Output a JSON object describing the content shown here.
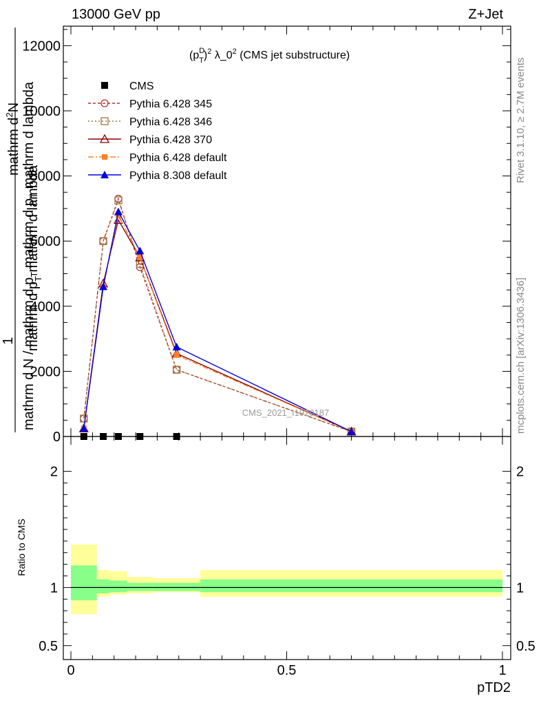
{
  "header": {
    "left": "13000 GeV pp",
    "right": "Z+Jet"
  },
  "side_labels": {
    "rivet": "Rivet 3.1.10, ≥ 2.7M events",
    "mcplots": "mcplots.cern.ch [arXiv:1306.3436]"
  },
  "main_title": "(p_T^D)^2 λ_0^2 (CMS jet substructure)",
  "watermark": "CMS_2021_I1920187",
  "ratio_ylabel": "Ratio to CMS",
  "xlabel": "pTD2",
  "main_ylabel": {
    "numerator": "mathrm d^2N",
    "num_parts": [
      "mathrm d",
      "2",
      "N"
    ],
    "frac1_num": "1",
    "denominator": "mathrm d p_T mathrm d lambda",
    "frac2_den_parts": [
      "mathrm d N / mathrm d p",
      "T",
      "mathrm d p",
      "T",
      "mathrm d lambda"
    ],
    "left_parts": [
      "mathrm d N / mathrm d p",
      "T"
    ]
  },
  "colors": {
    "cms": "#000000",
    "p345": "#b03030",
    "p346": "#9a7a3a",
    "p370": "#8b0000",
    "p6def": "#ff7f27",
    "p8def": "#0000dd",
    "band_yellow": "#ffff99",
    "band_green": "#88ff88"
  },
  "chart_data": [
    {
      "type": "line",
      "panel": "main",
      "xlim": [
        0,
        1
      ],
      "ylim": [
        0,
        12600
      ],
      "yticks": [
        0,
        2000,
        4000,
        6000,
        8000,
        10000,
        12000
      ],
      "ytick_labels": [
        "0",
        "2000",
        "4000",
        "6000",
        "8000",
        "10000",
        "12000"
      ],
      "series": [
        {
          "name": "CMS",
          "marker": "square",
          "x": [
            0.03,
            0.075,
            0.11,
            0.16,
            0.245
          ],
          "y": [
            0,
            0,
            0,
            0,
            0
          ]
        },
        {
          "name": "Pythia 6.428 345",
          "marker": "circle-open",
          "dash": "4,3",
          "x": [
            0.03,
            0.075,
            0.11,
            0.16,
            0.245,
            0.65
          ],
          "y": [
            550,
            6000,
            7300,
            5200,
            2050,
            150
          ]
        },
        {
          "name": "Pythia 6.428 346",
          "marker": "square-open",
          "dash": "2,3",
          "x": [
            0.03,
            0.075,
            0.11,
            0.16,
            0.245,
            0.65
          ],
          "y": [
            550,
            6000,
            7250,
            5300,
            2050,
            150
          ]
        },
        {
          "name": "Pythia 6.428 370",
          "marker": "triangle-open",
          "dash": "",
          "x": [
            0.03,
            0.075,
            0.11,
            0.16,
            0.245,
            0.65
          ],
          "y": [
            250,
            4700,
            6650,
            5500,
            2550,
            150
          ]
        },
        {
          "name": "Pythia 6.428 default",
          "marker": "square-filled",
          "dash": "8,3,2,3",
          "x": [
            0.03,
            0.075,
            0.11,
            0.16,
            0.245,
            0.65
          ],
          "y": [
            250,
            4600,
            6800,
            5500,
            2500,
            150
          ]
        },
        {
          "name": "Pythia 8.308 default",
          "marker": "triangle-filled",
          "dash": "",
          "x": [
            0.03,
            0.075,
            0.11,
            0.16,
            0.245,
            0.65
          ],
          "y": [
            250,
            4600,
            6900,
            5700,
            2750,
            150
          ]
        }
      ]
    },
    {
      "type": "area",
      "panel": "ratio",
      "xlim": [
        0,
        1
      ],
      "ylim": [
        0.38,
        2.3
      ],
      "yticks": [
        0.5,
        1,
        2
      ],
      "ytick_labels": [
        "0.5",
        "1",
        "2"
      ],
      "xticks": [
        0,
        0.5,
        1
      ],
      "xtick_labels": [
        "0",
        "0.5",
        "1"
      ],
      "reference": 1,
      "bands": {
        "bins": [
          [
            0,
            0.06
          ],
          [
            0.06,
            0.09
          ],
          [
            0.09,
            0.13
          ],
          [
            0.13,
            0.19
          ],
          [
            0.19,
            0.3
          ],
          [
            0.3,
            1.0
          ]
        ],
        "yellow": [
          [
            0.77,
            1.37
          ],
          [
            0.92,
            1.15
          ],
          [
            0.94,
            1.14
          ],
          [
            0.95,
            1.09
          ],
          [
            0.96,
            1.08
          ],
          [
            0.92,
            1.15
          ]
        ],
        "green": [
          [
            0.89,
            1.19
          ],
          [
            0.95,
            1.07
          ],
          [
            0.96,
            1.06
          ],
          [
            0.97,
            1.04
          ],
          [
            0.97,
            1.04
          ],
          [
            0.96,
            1.07
          ]
        ]
      }
    }
  ]
}
